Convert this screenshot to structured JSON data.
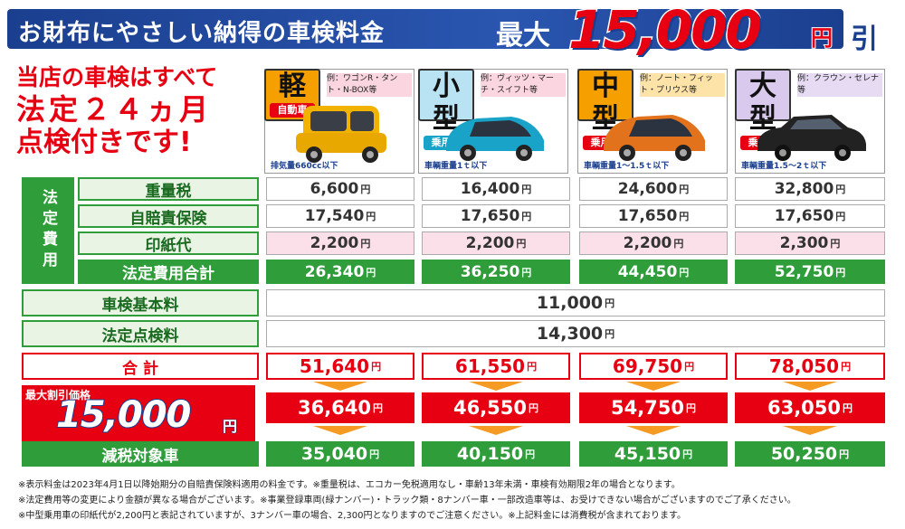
{
  "header": {
    "title": "お財布にやさしい納得の車検料金",
    "max_label": "最大",
    "amount": "15,000",
    "yen": "円",
    "hiki": "引"
  },
  "tagline": {
    "line1": "当店の車検はすべて",
    "line2": "法定２４ヵ月",
    "line3": "点検付きです!"
  },
  "cars": [
    {
      "badge": "軽",
      "type": "自動車",
      "example": "例：ワゴンR・タント・N-BOX等",
      "note": "排気量660cc以下",
      "color": "#f2b200"
    },
    {
      "badge": "小型",
      "type": "乗用車",
      "example": "例：ヴィッツ・マーチ・スイフト等",
      "note": "車輌重量1ｔ以下",
      "color": "#1aa3c8"
    },
    {
      "badge": "中型",
      "type": "乗用車",
      "example": "例：ノート・フィット・プリウス等",
      "note": "車輌重量1～1.5ｔ以下",
      "color": "#e2731c"
    },
    {
      "badge": "大型",
      "type": "乗用車",
      "example": "例：クラウン・セレナ等",
      "note": "車輌重量1.5～2ｔ以下",
      "color": "#222222"
    }
  ],
  "legal_group": "法定費用",
  "rows": {
    "juryo": {
      "label": "重量税",
      "values": [
        "6,600",
        "16,400",
        "24,600",
        "32,800"
      ]
    },
    "jibai": {
      "label": "自賠責保険",
      "values": [
        "17,540",
        "17,650",
        "17,650",
        "17,650"
      ]
    },
    "inshi": {
      "label": "印紙代",
      "values": [
        "2,200",
        "2,200",
        "2,200",
        "2,300"
      ]
    },
    "hotei_total": {
      "label": "法定費用合計",
      "values": [
        "26,340",
        "36,250",
        "44,450",
        "52,750"
      ]
    },
    "kihon": {
      "label": "車検基本料",
      "value": "11,000"
    },
    "tenken": {
      "label": "法定点検料",
      "value": "14,300"
    },
    "total": {
      "label": "合 計",
      "values": [
        "51,640",
        "61,550",
        "69,750",
        "78,050"
      ]
    },
    "discount": {
      "values": [
        "36,640",
        "46,550",
        "54,750",
        "63,050"
      ]
    },
    "genzei": {
      "label": "減税対象車",
      "values": [
        "35,040",
        "40,150",
        "45,150",
        "50,250"
      ]
    }
  },
  "yen": "円",
  "discount_box": {
    "label": "最大割引価格",
    "amount": "15,000",
    "yen": "円"
  },
  "footnotes": [
    "※表示料金は2023年4月1日以降始期分の自賠責保険料適用の料金です。※重量税は、エコカー免税適用なし・車齢13年未満・車検有効期限2年の場合となります。",
    "※法定費用等の変更により金額が異なる場合がございます。※事業登録車両(緑ナンバー)・トラック類・8ナンバー車・一部改造車等は、お受けできない場合がございますのでご了承ください。",
    "※中型乗用車の印紙代が2,200円と表記されていますが、3ナンバー車の場合、2,300円となりますのでご注意ください。※上記料金には消費税が含まれております。"
  ]
}
